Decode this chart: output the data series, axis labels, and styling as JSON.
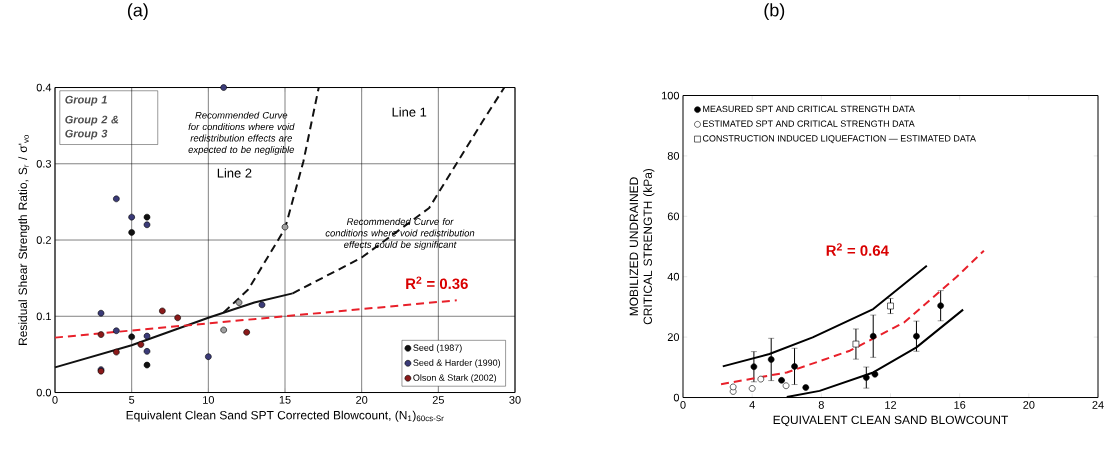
{
  "chart_data": [
    {
      "type": "scatter",
      "title": "(a)",
      "xlabel": "Equivalent Clean Sand SPT Corrected Blowcount, (N$_{1}$)$_{60cs-Sr}$",
      "ylabel": "Residual Shear Strength Ratio, S$_{r}$ / σ'$_{vo}$",
      "xlim": [
        0,
        30
      ],
      "ylim": [
        0,
        0.4
      ],
      "xticks": [
        0,
        5,
        10,
        15,
        20,
        25,
        30
      ],
      "yticks": [
        {
          "value": 0,
          "label": "0.0"
        },
        0.1,
        0.2,
        0.3,
        0.4
      ],
      "grid": true,
      "legend": "bottom right",
      "series": [
        {
          "name": "Seed (1987)",
          "color": "#111111",
          "marker": "circle",
          "x": [
            5,
            6,
            5,
            6
          ],
          "values": [
            0.21,
            0.23,
            0.073,
            0.036
          ]
        },
        {
          "name": "Seed & Harder (1990)",
          "color": "#3b3b78",
          "marker": "circle",
          "x": [
            4,
            5,
            6,
            3,
            4,
            6,
            6,
            3,
            10,
            13.5,
            11
          ],
          "values": [
            0.254,
            0.23,
            0.22,
            0.104,
            0.081,
            0.074,
            0.054,
            0.03,
            0.047,
            0.115,
            0.4
          ]
        },
        {
          "name": "Olson & Stark (2002)",
          "color": "#8b1a1a",
          "marker": "circle",
          "x": [
            3,
            4,
            3,
            5.6,
            7,
            8,
            12.5
          ],
          "values": [
            0.076,
            0.053,
            0.028,
            0.063,
            0.107,
            0.098,
            0.079
          ]
        },
        {
          "color": "#a0a0a0",
          "marker": "circle",
          "x": [
            15,
            12,
            11
          ],
          "values": [
            0.217,
            0.118,
            0.082
          ]
        },
        {
          "type": "line",
          "color": "#111111",
          "line_style": "solid",
          "x": [
            0,
            5,
            10,
            13,
            15.5
          ],
          "values": [
            0.033,
            0.062,
            0.098,
            0.118,
            0.13
          ]
        },
        {
          "type": "line",
          "color": "#111111",
          "line_style": "dashed",
          "x": [
            15.5,
            20,
            24.4,
            27.9,
            29.3
          ],
          "values": [
            0.13,
            0.177,
            0.242,
            0.356,
            0.4
          ]
        },
        {
          "type": "line",
          "color": "#111111",
          "line_style": "dashed",
          "x": [
            11,
            12.6,
            15,
            16.2,
            17.2
          ],
          "values": [
            0.105,
            0.135,
            0.215,
            0.303,
            0.4
          ]
        },
        {
          "type": "line",
          "color": "#e8202a",
          "line_style": "dashed",
          "x": [
            0,
            26.2
          ],
          "values": [
            0.072,
            0.121
          ]
        }
      ],
      "annotations": [
        "Group 1",
        "Group 2 & Group 3",
        "Recommended Curve for conditions where void redistribution effects are expected to be negligible",
        "Recommended Curve for conditions where void redistribution effects could be significant",
        "Line 1",
        "Line 2",
        "R$^{2}$ = 0.36"
      ]
    },
    {
      "type": "scatter",
      "title": "(b)",
      "xlabel": "EQUIVALENT CLEAN SAND BLOWCOUNT",
      "ylabel": "MOBILIZED UNDRAINED CRITICAL STRENGTH (kPa)",
      "xlim": [
        0,
        24
      ],
      "ylim": [
        0,
        100
      ],
      "xticks": [
        0,
        4,
        8,
        12,
        16,
        20,
        24
      ],
      "yticks": [
        0,
        20,
        40,
        60,
        80,
        100
      ],
      "legend": "top left",
      "series": [
        {
          "name": "MEASURED SPT AND CRITICAL STRENGTH DATA",
          "color": "#000000",
          "marker": "circle",
          "x": [
            4.1,
            5.1,
            5.7,
            6.45,
            7.1,
            10.6,
            11,
            11.1,
            13.5,
            14.9
          ],
          "values": [
            10.2,
            12.6,
            5.7,
            10.3,
            3.3,
            6.6,
            20.3,
            7.7,
            20.3,
            30.4
          ],
          "errors": [
            5,
            7,
            null,
            6,
            null,
            3.5,
            7,
            null,
            5,
            5
          ]
        },
        {
          "name": "ESTIMATED SPT AND CRITICAL STRENGTH DATA",
          "color": "#ffffff",
          "marker": "circle",
          "x": [
            2.9,
            2.9,
            4,
            4.5,
            5.96
          ],
          "values": [
            2,
            3.5,
            3,
            6.1,
            3.9
          ]
        },
        {
          "name": "CONSTRUCTION INDUCED LIQUEFACTION — ESTIMATED DATA",
          "color": "#ffffff",
          "marker": "square",
          "x": [
            10,
            12
          ],
          "values": [
            17.7,
            30.3
          ],
          "errors": [
            5,
            2.5
          ]
        },
        {
          "type": "line",
          "color": "#000000",
          "line_style": "solid",
          "x": [
            2.3,
            5,
            7.5,
            11,
            14.1
          ],
          "values": [
            10.3,
            14.4,
            19.9,
            29.3,
            43.6
          ]
        },
        {
          "type": "line",
          "color": "#000000",
          "line_style": "solid",
          "x": [
            6,
            7.9,
            11,
            13.5,
            16.2
          ],
          "values": [
            0.2,
            2.2,
            8.3,
            16.6,
            29.1
          ]
        },
        {
          "type": "line",
          "color": "#e8202a",
          "line_style": "dashed",
          "x": [
            2.2,
            6,
            9.65,
            12.8,
            15.8,
            17.4
          ],
          "values": [
            4.4,
            8.3,
            15.5,
            24.9,
            39.8,
            48.6
          ]
        }
      ],
      "annotations": [
        "R$^{2}$ = 0.64"
      ]
    }
  ]
}
